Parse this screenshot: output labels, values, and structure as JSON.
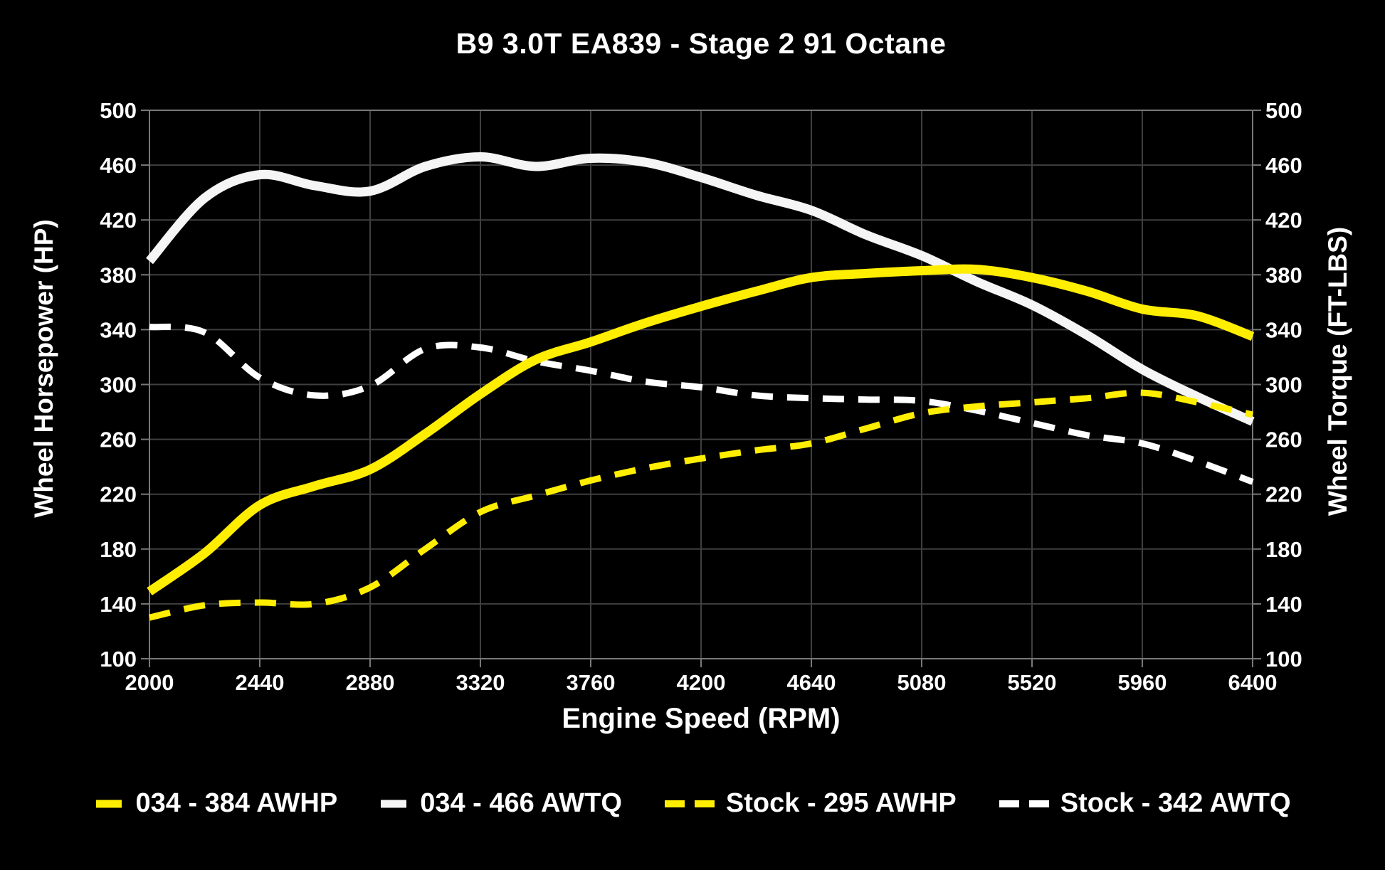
{
  "title": "B9 3.0T EA839 - Stage 2 91 Octane",
  "chart_data": {
    "type": "line",
    "title": "B9 3.0T EA839 - Stage 2 91 Octane",
    "xlabel": "Engine Speed (RPM)",
    "ylabel_left": "Wheel Horsepower (HP)",
    "ylabel_right": "Wheel Torque (FT-LBS)",
    "xlim": [
      2000,
      6400
    ],
    "ylim": [
      100,
      500
    ],
    "x_ticks": [
      2000,
      2440,
      2880,
      3320,
      3760,
      4200,
      4640,
      5080,
      5520,
      5960,
      6400
    ],
    "y_ticks": [
      100,
      140,
      180,
      220,
      260,
      300,
      340,
      380,
      420,
      460,
      500
    ],
    "grid": true,
    "legend_position": "bottom",
    "background": "#000000",
    "grid_color": "#3f3f3f",
    "border_color": "#787878",
    "text_color": "#ffffff",
    "draw_order": [
      1,
      3,
      2,
      0
    ],
    "x": [
      2000,
      2220,
      2440,
      2660,
      2880,
      3100,
      3320,
      3540,
      3760,
      3980,
      4200,
      4420,
      4640,
      4860,
      5080,
      5300,
      5520,
      5740,
      5960,
      6180,
      6400
    ],
    "series": [
      {
        "name": "034 - 384 AWHP",
        "color": "#ffee00",
        "style": "solid",
        "width": 13,
        "axis": "left",
        "peak": 384,
        "values": [
          149,
          177,
          212,
          226,
          238,
          264,
          293,
          318,
          331,
          345,
          357,
          368,
          378,
          381,
          383,
          384,
          378,
          368,
          355,
          350,
          335
        ]
      },
      {
        "name": "034 - 466 AWTQ",
        "color": "#f5f5f5",
        "style": "solid",
        "width": 13,
        "axis": "right",
        "peak": 466,
        "values": [
          390,
          436,
          453,
          445,
          441,
          459,
          466,
          459,
          465,
          462,
          451,
          438,
          427,
          409,
          394,
          375,
          358,
          336,
          311,
          291,
          273
        ]
      },
      {
        "name": "Stock - 295 AWHP",
        "color": "#ffee00",
        "style": "dashed",
        "width": 9,
        "axis": "left",
        "peak": 295,
        "values": [
          130,
          139,
          141,
          140,
          152,
          180,
          207,
          219,
          230,
          239,
          246,
          252,
          257,
          268,
          279,
          284,
          287,
          290,
          294,
          287,
          278
        ]
      },
      {
        "name": "Stock - 342 AWTQ",
        "color": "#ffffff",
        "style": "dashed",
        "width": 9,
        "axis": "right",
        "peak": 342,
        "values": [
          342,
          338,
          305,
          292,
          299,
          326,
          327,
          317,
          310,
          302,
          298,
          292,
          290,
          289,
          288,
          281,
          272,
          263,
          257,
          244,
          229
        ]
      }
    ]
  }
}
